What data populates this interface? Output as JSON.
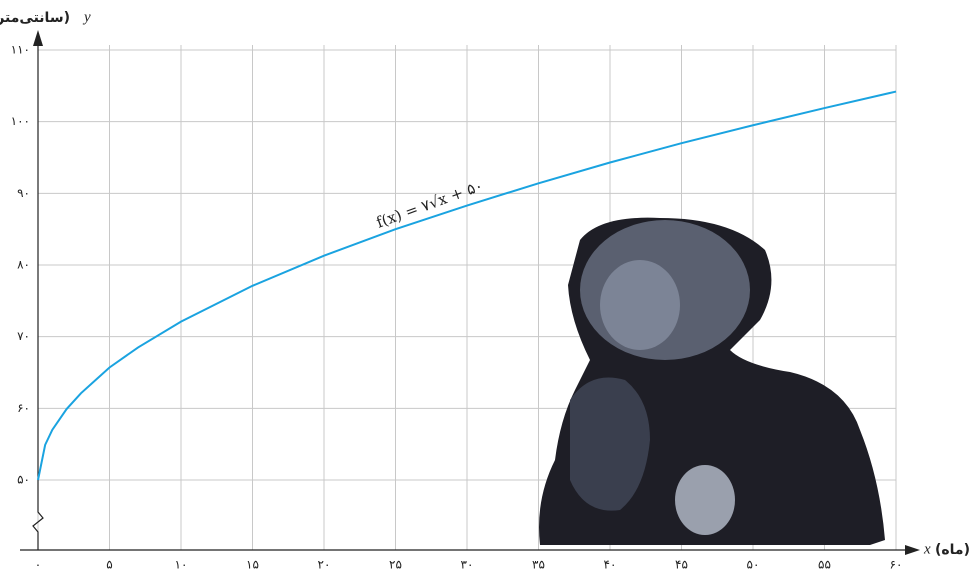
{
  "chart_data": {
    "type": "line",
    "ylabel": "(سانتی‌متر)",
    "xlabel": "(ماه)",
    "y_letter": "y",
    "x_letter": "x",
    "annotation": "f(x) = ۷√x + ۵۰",
    "x": [
      0,
      0.5,
      1,
      2,
      3,
      5,
      7,
      10,
      15,
      20,
      25,
      30,
      35,
      40,
      45,
      50,
      55,
      60
    ],
    "series": [
      {
        "color": "#1aa3e0",
        "values": [
          50,
          54.9,
          57,
          59.9,
          62.1,
          65.7,
          68.5,
          72.1,
          77.1,
          81.3,
          85,
          88.3,
          91.4,
          94.3,
          97,
          99.5,
          101.9,
          104.2
        ]
      }
    ],
    "xlim": [
      0,
      60
    ],
    "ylim": [
      50,
      110
    ],
    "xticks": [
      {
        "value": 0,
        "label": "۰"
      },
      {
        "value": 5,
        "label": "۵"
      },
      {
        "value": 10,
        "label": "۱۰"
      },
      {
        "value": 15,
        "label": "۱۵"
      },
      {
        "value": 20,
        "label": "۲۰"
      },
      {
        "value": 25,
        "label": "۲۵"
      },
      {
        "value": 30,
        "label": "۳۰"
      },
      {
        "value": 35,
        "label": "۳۵"
      },
      {
        "value": 40,
        "label": "۴۰"
      },
      {
        "value": 45,
        "label": "۴۵"
      },
      {
        "value": 50,
        "label": "۵۰"
      },
      {
        "value": 55,
        "label": "۵۵"
      },
      {
        "value": 60,
        "label": "۶۰"
      }
    ],
    "yticks": [
      {
        "value": 50,
        "label": "۵۰"
      },
      {
        "value": 60,
        "label": "۶۰"
      },
      {
        "value": 70,
        "label": "۷۰"
      },
      {
        "value": 80,
        "label": "۸۰"
      },
      {
        "value": 90,
        "label": "۹۰"
      },
      {
        "value": 100,
        "label": "۱۰۰"
      },
      {
        "value": 110,
        "label": "۱۱۰"
      }
    ],
    "grid": true
  }
}
